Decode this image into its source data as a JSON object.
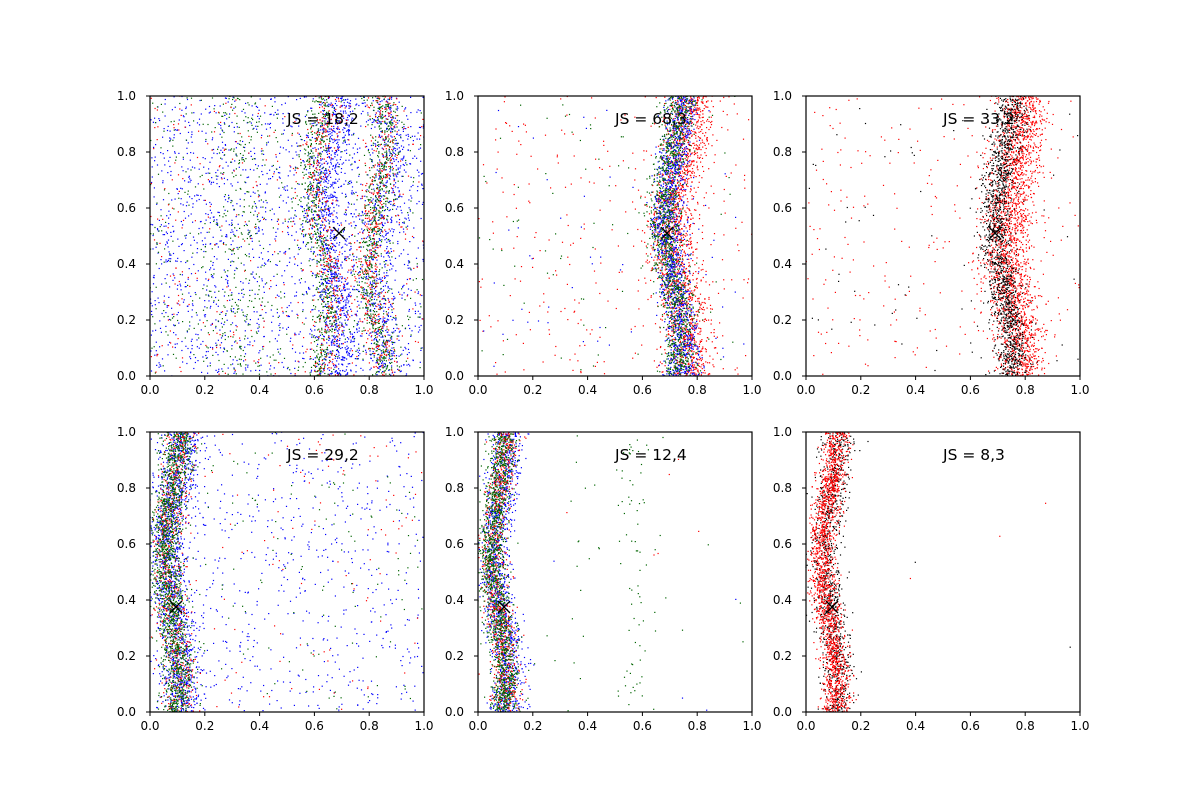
{
  "chart_data": [
    {
      "type": "scatter",
      "annotation": "JS = 18,2",
      "xlim": [
        0,
        1
      ],
      "ylim": [
        0,
        1
      ],
      "xticks": [
        "0.0",
        "0.2",
        "0.4",
        "0.6",
        "0.8",
        "1.0"
      ],
      "yticks": [
        "0.0",
        "0.2",
        "0.4",
        "0.6",
        "0.8",
        "1.0"
      ],
      "marker": {
        "x": 0.69,
        "y": 0.51
      },
      "series": [
        {
          "color": "#0000ff",
          "bands": [
            {
              "center": 0.67,
              "width": 0.035,
              "amp": 0.03,
              "count": 900
            },
            {
              "center": 0.85,
              "width": 0.035,
              "amp": 0.03,
              "count": 500
            }
          ],
          "background": 1700
        },
        {
          "color": "#006400",
          "bands": [
            {
              "center": 0.62,
              "width": 0.025,
              "amp": 0.03,
              "count": 600
            },
            {
              "center": 0.83,
              "width": 0.03,
              "amp": 0.03,
              "count": 700
            },
            {
              "center": 0.33,
              "width": 0.05,
              "amp": 0.03,
              "count": 250
            }
          ],
          "background": 450
        },
        {
          "color": "#ff0000",
          "bands": [
            {
              "center": 0.64,
              "width": 0.03,
              "amp": 0.03,
              "count": 350
            },
            {
              "center": 0.83,
              "width": 0.03,
              "amp": 0.03,
              "count": 400
            }
          ],
          "background": 350
        }
      ]
    },
    {
      "type": "scatter",
      "annotation": "JS = 68,3",
      "xlim": [
        0,
        1
      ],
      "ylim": [
        0,
        1
      ],
      "xticks": [
        "0.0",
        "0.2",
        "0.4",
        "0.6",
        "0.8",
        "1.0"
      ],
      "yticks": [
        "0.0",
        "0.2",
        "0.4",
        "0.6",
        "0.8",
        "1.0"
      ],
      "marker": {
        "x": 0.69,
        "y": 0.51
      },
      "series": [
        {
          "color": "#ff0000",
          "bands": [
            {
              "center": 0.74,
              "width": 0.045,
              "amp": 0.03,
              "count": 1800
            }
          ],
          "background": 280
        },
        {
          "color": "#0000ff",
          "bands": [
            {
              "center": 0.72,
              "width": 0.03,
              "amp": 0.03,
              "count": 1400
            }
          ],
          "background": 60
        },
        {
          "color": "#006400",
          "bands": [
            {
              "center": 0.71,
              "width": 0.03,
              "amp": 0.03,
              "count": 1300
            }
          ],
          "background": 90
        }
      ]
    },
    {
      "type": "scatter",
      "annotation": "JS = 33,2",
      "xlim": [
        0,
        1
      ],
      "ylim": [
        0,
        1
      ],
      "xticks": [
        "0.0",
        "0.2",
        "0.4",
        "0.6",
        "0.8",
        "1.0"
      ],
      "yticks": [
        "0.0",
        "0.2",
        "0.4",
        "0.6",
        "0.8",
        "1.0"
      ],
      "marker": {
        "x": 0.69,
        "y": 0.51
      },
      "series": [
        {
          "color": "#ff0000",
          "bands": [
            {
              "center": 0.76,
              "width": 0.045,
              "amp": 0.03,
              "count": 2200
            }
          ],
          "background": 260
        },
        {
          "color": "#000000",
          "bands": [
            {
              "center": 0.72,
              "width": 0.03,
              "amp": 0.03,
              "count": 1500
            }
          ],
          "background": 70
        }
      ]
    },
    {
      "type": "scatter",
      "annotation": "JS = 29,2",
      "xlim": [
        0,
        1
      ],
      "ylim": [
        0,
        1
      ],
      "xticks": [
        "0.0",
        "0.2",
        "0.4",
        "0.6",
        "0.8",
        "1.0"
      ],
      "yticks": [
        "0.0",
        "0.2",
        "0.4",
        "0.6",
        "0.8",
        "1.0"
      ],
      "marker": {
        "x": 0.095,
        "y": 0.375
      },
      "series": [
        {
          "color": "#0000ff",
          "bands": [
            {
              "center": 0.09,
              "width": 0.035,
              "amp": 0.025,
              "count": 1400
            }
          ],
          "background": 650
        },
        {
          "color": "#ff0000",
          "bands": [
            {
              "center": 0.085,
              "width": 0.03,
              "amp": 0.025,
              "count": 700
            }
          ],
          "background": 120
        },
        {
          "color": "#006400",
          "bands": [
            {
              "center": 0.08,
              "width": 0.03,
              "amp": 0.025,
              "count": 1600
            }
          ],
          "background": 130
        }
      ]
    },
    {
      "type": "scatter",
      "annotation": "JS = 12,4",
      "xlim": [
        0,
        1
      ],
      "ylim": [
        0,
        1
      ],
      "xticks": [
        "0.0",
        "0.2",
        "0.4",
        "0.6",
        "0.8",
        "1.0"
      ],
      "yticks": [
        "0.0",
        "0.2",
        "0.4",
        "0.6",
        "0.8",
        "1.0"
      ],
      "marker": {
        "x": 0.095,
        "y": 0.375
      },
      "series": [
        {
          "color": "#0000ff",
          "bands": [
            {
              "center": 0.085,
              "width": 0.03,
              "amp": 0.025,
              "count": 1300
            }
          ],
          "background": 8
        },
        {
          "color": "#ff0000",
          "bands": [
            {
              "center": 0.08,
              "width": 0.025,
              "amp": 0.025,
              "count": 900
            }
          ],
          "background": 8
        },
        {
          "color": "#006400",
          "bands": [
            {
              "center": 0.075,
              "width": 0.025,
              "amp": 0.025,
              "count": 1500
            },
            {
              "center": 0.57,
              "width": 0.03,
              "amp": 0.02,
              "count": 70
            },
            {
              "center": 0.36,
              "width": 0.03,
              "amp": 0.02,
              "count": 15
            }
          ],
          "background": 20
        }
      ]
    },
    {
      "type": "scatter",
      "annotation": "JS = 8,3",
      "xlim": [
        0,
        1
      ],
      "ylim": [
        0,
        1
      ],
      "xticks": [
        "0.0",
        "0.2",
        "0.4",
        "0.6",
        "0.8",
        "1.0"
      ],
      "yticks": [
        "0.0",
        "0.2",
        "0.4",
        "0.6",
        "0.8",
        "1.0"
      ],
      "marker": {
        "x": 0.095,
        "y": 0.375
      },
      "series": [
        {
          "color": "#000000",
          "bands": [
            {
              "center": 0.095,
              "width": 0.03,
              "amp": 0.025,
              "count": 1000
            }
          ],
          "background": 3
        },
        {
          "color": "#ff0000",
          "bands": [
            {
              "center": 0.085,
              "width": 0.025,
              "amp": 0.025,
              "count": 1800
            }
          ],
          "background": 3
        }
      ]
    }
  ]
}
